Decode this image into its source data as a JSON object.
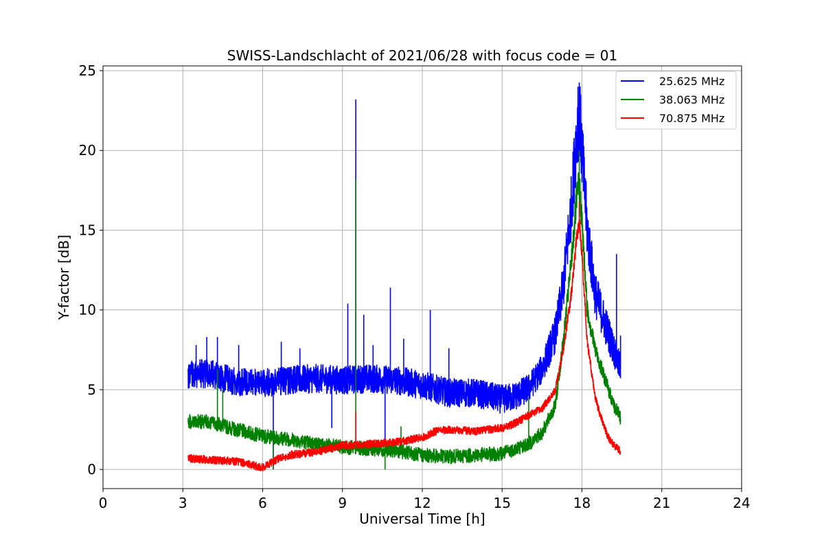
{
  "chart_data": {
    "type": "line",
    "title": "SWISS-Landschlacht of 2021/06/28 with focus code = 01",
    "xlabel": "Universal Time [h]",
    "ylabel": "Y-factor [dB]",
    "xlim": [
      0,
      24
    ],
    "ylim": [
      -1.2,
      25.3
    ],
    "x_ticks": [
      "0",
      "3",
      "6",
      "9",
      "12",
      "15",
      "18",
      "21",
      "24"
    ],
    "y_ticks": [
      "0",
      "5",
      "10",
      "15",
      "20",
      "25"
    ],
    "grid": true,
    "legend_position": "top-right",
    "series": [
      {
        "name": "25.625 MHz",
        "color": "#0000ff",
        "baseline": [
          [
            3.2,
            6.0
          ],
          [
            4.0,
            6.0
          ],
          [
            5.0,
            5.5
          ],
          [
            6.0,
            5.4
          ],
          [
            7.0,
            5.6
          ],
          [
            8.0,
            5.7
          ],
          [
            9.0,
            5.6
          ],
          [
            10.0,
            5.7
          ],
          [
            11.0,
            5.6
          ],
          [
            12.0,
            5.3
          ],
          [
            13.0,
            4.8
          ],
          [
            14.0,
            4.8
          ],
          [
            14.5,
            4.6
          ],
          [
            15.0,
            4.4
          ],
          [
            15.5,
            4.6
          ],
          [
            16.0,
            5.1
          ],
          [
            16.5,
            6.3
          ],
          [
            17.0,
            8.5
          ],
          [
            17.3,
            11.5
          ],
          [
            17.6,
            16.5
          ],
          [
            17.8,
            21.0
          ],
          [
            17.9,
            22.3
          ],
          [
            18.0,
            20.0
          ],
          [
            18.2,
            15.0
          ],
          [
            18.5,
            11.0
          ],
          [
            18.8,
            9.5
          ],
          [
            19.0,
            8.5
          ],
          [
            19.2,
            7.5
          ],
          [
            19.4,
            6.5
          ],
          [
            19.45,
            6.3
          ]
        ],
        "noise": 0.9,
        "spikes": [
          [
            3.5,
            7.8
          ],
          [
            3.9,
            8.3
          ],
          [
            4.3,
            8.3
          ],
          [
            5.1,
            7.8
          ],
          [
            6.4,
            0.0
          ],
          [
            6.7,
            8.0
          ],
          [
            7.4,
            7.6
          ],
          [
            8.6,
            2.6
          ],
          [
            9.2,
            10.4
          ],
          [
            9.5,
            23.2
          ],
          [
            9.8,
            9.7
          ],
          [
            10.15,
            7.8
          ],
          [
            10.6,
            1.8
          ],
          [
            10.8,
            11.4
          ],
          [
            11.3,
            8.2
          ],
          [
            12.3,
            10.0
          ],
          [
            13.0,
            7.6
          ],
          [
            17.85,
            24.0
          ],
          [
            19.3,
            13.5
          ],
          [
            19.45,
            8.4
          ]
        ]
      },
      {
        "name": "38.063 MHz",
        "color": "#008000",
        "baseline": [
          [
            3.2,
            3.0
          ],
          [
            4.0,
            3.0
          ],
          [
            5.0,
            2.5
          ],
          [
            6.0,
            2.1
          ],
          [
            7.0,
            1.9
          ],
          [
            8.0,
            1.6
          ],
          [
            9.0,
            1.4
          ],
          [
            10.0,
            1.3
          ],
          [
            11.0,
            1.2
          ],
          [
            12.0,
            0.9
          ],
          [
            13.0,
            0.8
          ],
          [
            14.0,
            0.9
          ],
          [
            15.0,
            1.0
          ],
          [
            15.5,
            1.3
          ],
          [
            16.0,
            1.6
          ],
          [
            16.5,
            2.3
          ],
          [
            17.0,
            4.0
          ],
          [
            17.3,
            8.0
          ],
          [
            17.6,
            13.0
          ],
          [
            17.8,
            17.0
          ],
          [
            17.9,
            17.8
          ],
          [
            18.0,
            15.5
          ],
          [
            18.2,
            10.0
          ],
          [
            18.5,
            7.5
          ],
          [
            18.8,
            6.0
          ],
          [
            19.0,
            5.0
          ],
          [
            19.2,
            4.0
          ],
          [
            19.4,
            3.4
          ],
          [
            19.45,
            3.2
          ]
        ],
        "noise": 0.45,
        "spikes": [
          [
            4.3,
            6.3
          ],
          [
            4.5,
            5.0
          ],
          [
            6.4,
            0.0
          ],
          [
            9.5,
            18.2
          ],
          [
            10.6,
            0.0
          ],
          [
            11.2,
            2.7
          ],
          [
            16.0,
            4.5
          ],
          [
            17.9,
            20.0
          ]
        ]
      },
      {
        "name": "70.875 MHz",
        "color": "#ff0000",
        "baseline": [
          [
            3.2,
            0.7
          ],
          [
            4.0,
            0.6
          ],
          [
            5.0,
            0.5
          ],
          [
            5.5,
            0.35
          ],
          [
            6.0,
            0.1
          ],
          [
            6.5,
            0.6
          ],
          [
            7.0,
            0.9
          ],
          [
            8.0,
            1.1
          ],
          [
            9.0,
            1.5
          ],
          [
            10.0,
            1.6
          ],
          [
            11.0,
            1.7
          ],
          [
            12.0,
            2.0
          ],
          [
            12.5,
            2.4
          ],
          [
            13.0,
            2.5
          ],
          [
            14.0,
            2.4
          ],
          [
            15.0,
            2.6
          ],
          [
            15.5,
            2.9
          ],
          [
            16.0,
            3.4
          ],
          [
            16.5,
            3.8
          ],
          [
            17.0,
            5.0
          ],
          [
            17.3,
            7.5
          ],
          [
            17.6,
            11.0
          ],
          [
            17.8,
            14.5
          ],
          [
            17.9,
            15.5
          ],
          [
            18.0,
            13.5
          ],
          [
            18.2,
            8.0
          ],
          [
            18.5,
            4.5
          ],
          [
            18.8,
            2.8
          ],
          [
            19.0,
            2.0
          ],
          [
            19.2,
            1.5
          ],
          [
            19.4,
            1.2
          ],
          [
            19.45,
            1.0
          ]
        ],
        "noise": 0.25,
        "spikes": [
          [
            9.5,
            3.6
          ],
          [
            17.9,
            16.8
          ]
        ]
      }
    ]
  }
}
